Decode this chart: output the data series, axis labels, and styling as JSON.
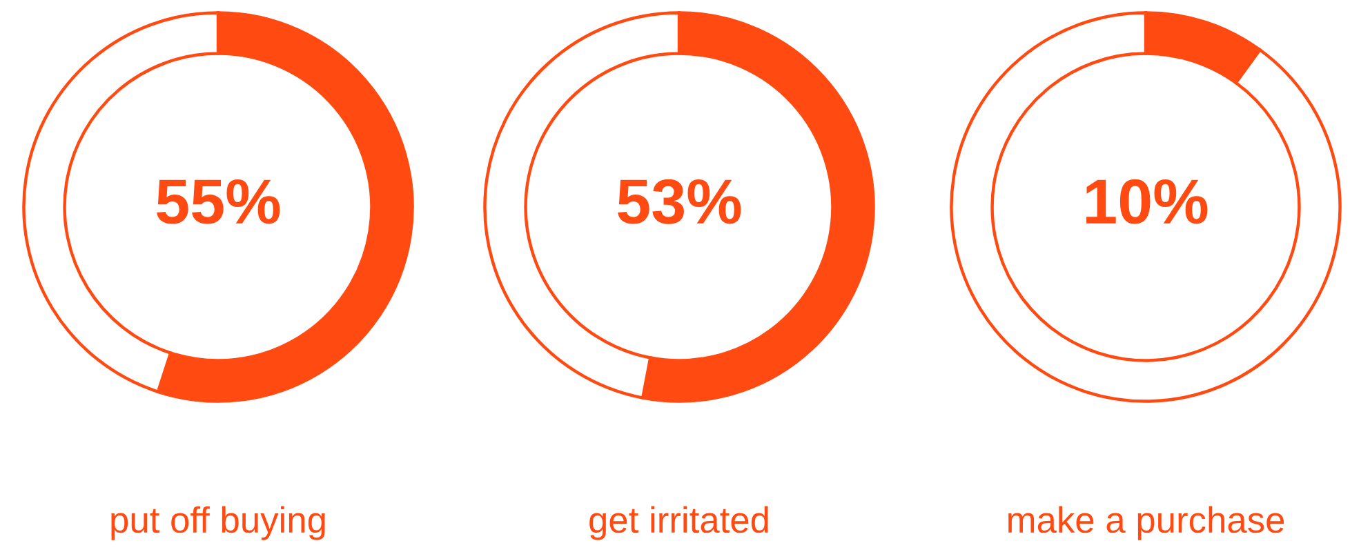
{
  "chart_data": [
    {
      "type": "donut",
      "categories": [
        null,
        null
      ],
      "values": [
        55,
        45
      ],
      "colors": [
        "#ff4a12",
        "#ffffff"
      ],
      "value_labels": [
        "55%",
        null
      ],
      "xlabel": "put off buying"
    },
    {
      "type": "donut",
      "categories": [
        null,
        null
      ],
      "values": [
        53,
        47
      ],
      "colors": [
        "#ff4a12",
        "#ffffff"
      ],
      "value_labels": [
        "53%",
        null
      ],
      "xlabel": "get irritated"
    },
    {
      "type": "donut",
      "categories": [
        null,
        null
      ],
      "values": [
        10,
        90
      ],
      "colors": [
        "#ff4a12",
        "#ffffff"
      ],
      "value_labels": [
        "10%",
        null
      ],
      "xlabel": "make a purchase"
    }
  ]
}
